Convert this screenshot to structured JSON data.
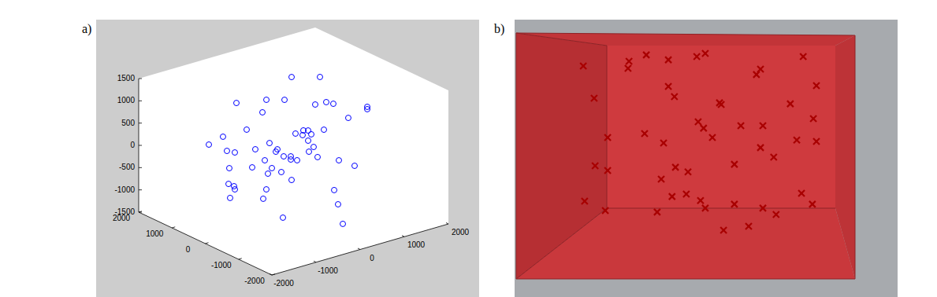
{
  "chart_data": [
    {
      "type": "scatter3d",
      "title": "a)",
      "marker": "o",
      "color": "#0000ff",
      "grid": false,
      "xlim": [
        -2000,
        2000
      ],
      "ylim": [
        -2000,
        2000
      ],
      "zlim": [
        -1500,
        1500
      ],
      "xticks": [
        -2000,
        -1000,
        0,
        1000,
        2000
      ],
      "yticks": [
        -2000,
        -1000,
        0,
        1000,
        2000
      ],
      "zticks": [
        -1500,
        -1000,
        -500,
        0,
        500,
        1000,
        1500
      ],
      "x": [
        559,
        1202,
        -691,
        -12,
        -205,
        491,
        741,
        1505,
        1670,
        1670,
        -705,
        637,
        -459,
        223,
        -273,
        648,
        -398,
        402,
        84,
        -995,
        -1316,
        -545,
        934,
        -1509,
        -1470,
        -727,
        -366,
        -1005,
        455,
        952,
        -223,
        -1255,
        684,
        -59,
        -62,
        1027,
        780,
        -852,
        -491,
        -1541,
        23,
        -277,
        -648,
        -1473,
        -745,
        -1330,
        -1220,
        920,
        -834,
        -687,
        405,
        -241,
        513,
        -666
      ],
      "y": [
        800,
        800,
        800,
        800,
        0,
        0,
        0,
        800,
        0,
        0,
        0,
        -800,
        800,
        0,
        -800,
        800,
        -800,
        0,
        -800,
        800,
        800,
        0,
        800,
        0,
        -800,
        800,
        0,
        -800,
        0,
        800,
        0,
        -800,
        800,
        -800,
        0,
        0,
        -800,
        800,
        0,
        -800,
        800,
        0,
        -800,
        0,
        800,
        0,
        -800,
        0,
        800,
        0,
        -800,
        0,
        -800,
        -800
      ],
      "z": [
        1224,
        1041,
        1000,
        877,
        1214,
        909,
        891,
        353,
        519,
        466,
        1076,
        849,
        335,
        404,
        827,
        -71,
        759,
        265,
        743,
        330,
        245,
        340,
        -312,
        441,
        748,
        -101,
        148,
        561,
        -34,
        -565,
        -51,
        439,
        -681,
        168,
        -168,
        -498,
        -268,
        -418,
        -238,
        362,
        -792,
        -388,
        -177,
        -311,
        -854,
        -475,
        -224,
        -1136,
        -1092,
        -870,
        -1025,
        -1422,
        -1496,
        358
      ]
    },
    {
      "type": "scatter",
      "title": "b)",
      "marker": "x",
      "color": "#a80000",
      "tick_labels": false,
      "xlim": [
        0,
        100
      ],
      "ylim": [
        0,
        100
      ],
      "x": [
        19.8,
        33.3,
        33.0,
        38.4,
        44.9,
        53.3,
        55.8,
        72.1,
        70.9,
        84.7,
        23.0,
        44.9,
        46.7,
        88.6,
        60.0,
        60.5,
        80.9,
        27.0,
        37.9,
        43.5,
        53.7,
        55.3,
        57.9,
        66.3,
        72.8,
        87.7,
        82.8,
        88.6,
        72.1,
        76.0,
        23.3,
        27.0,
        47.0,
        50.7,
        42.8,
        64.4,
        26.3,
        46.0,
        50.2,
        54.4,
        55.8,
        64.4,
        72.8,
        76.7,
        84.2,
        87.4,
        41.6,
        20.2,
        61.2,
        68.6
      ],
      "y": [
        86.6,
        88.5,
        85.6,
        91.1,
        89.1,
        90.4,
        91.7,
        85.3,
        83.1,
        90.4,
        73.5,
        78.3,
        74.1,
        78.6,
        71.6,
        70.9,
        71.2,
        57.5,
        59.1,
        55.3,
        63.9,
        61.3,
        57.5,
        62.3,
        62.3,
        65.2,
        56.5,
        55.9,
        53.4,
        49.5,
        46.0,
        44.1,
        45.4,
        43.5,
        40.6,
        46.6,
        27.8,
        33.5,
        34.5,
        31.9,
        28.8,
        30.4,
        28.8,
        26.2,
        34.8,
        30.4,
        27.2,
        31.6,
        19.8,
        21.4
      ]
    }
  ]
}
